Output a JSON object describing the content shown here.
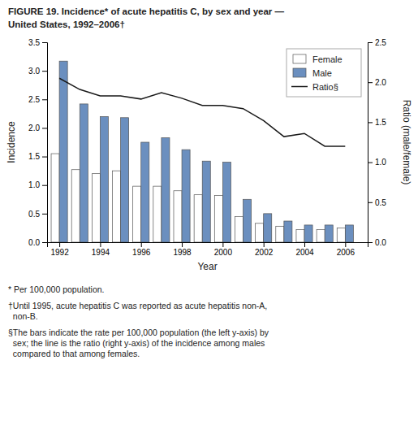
{
  "chart_data": {
    "type": "bar",
    "title": "FIGURE 19. Incidence* of acute hepatitis C, by sex and year —",
    "subtitle": "United States,  1992–2006†",
    "x": [
      1992,
      1993,
      1994,
      1995,
      1996,
      1997,
      1998,
      1999,
      2000,
      2001,
      2002,
      2003,
      2004,
      2005,
      2006
    ],
    "series": [
      {
        "name": "Female",
        "color": "#ffffff",
        "values": [
          1.55,
          1.27,
          1.2,
          1.25,
          0.98,
          0.98,
          0.9,
          0.83,
          0.82,
          0.45,
          0.33,
          0.28,
          0.22,
          0.22,
          0.25
        ]
      },
      {
        "name": "Male",
        "color": "#6b8fbf",
        "values": [
          3.17,
          2.42,
          2.2,
          2.18,
          1.75,
          1.83,
          1.62,
          1.42,
          1.4,
          0.75,
          0.5,
          0.37,
          0.3,
          0.3,
          0.3
        ]
      },
      {
        "name": "Ratio§",
        "type": "line",
        "axis": "y2",
        "color": "#1a1a1a",
        "values": [
          2.05,
          1.91,
          1.83,
          1.83,
          1.79,
          1.87,
          1.8,
          1.71,
          1.71,
          1.67,
          1.52,
          1.32,
          1.36,
          1.2,
          1.2
        ]
      }
    ],
    "xlabel": "Year",
    "ylabel": "Incidence",
    "y2label": "Ratio (male/female)",
    "xlim": [
      1991.4,
      2007.1
    ],
    "xticks": [
      1992,
      1994,
      1996,
      1998,
      2000,
      2002,
      2004,
      2006
    ],
    "ylim": [
      0,
      3.5
    ],
    "yticks": [
      {
        "value": 0,
        "label": "0.0"
      },
      0.5,
      {
        "value": 1,
        "label": "1.0"
      },
      1.5,
      {
        "value": 2,
        "label": "2.0"
      },
      2.5,
      {
        "value": 3,
        "label": "3.0"
      },
      3.5
    ],
    "y2lim": [
      0,
      2.5
    ],
    "y2ticks": [
      {
        "value": 0,
        "label": "0.0"
      },
      0.5,
      {
        "value": 1,
        "label": "1.0"
      },
      1.5,
      {
        "value": 2,
        "label": "2.0"
      },
      2.5
    ],
    "grid": false,
    "legend": "upper right",
    "annotations": [
      "* Per 100,000 population.",
      "†Until 1995, acute hepatitis C was reported as acute hepatitis non-A,\n  non-B.",
      "§The bars indicate the rate per 100,000 population (the left y-axis) by\n  sex; the line is the ratio (right y-axis) of the incidence among males\n  compared to that among females."
    ]
  }
}
